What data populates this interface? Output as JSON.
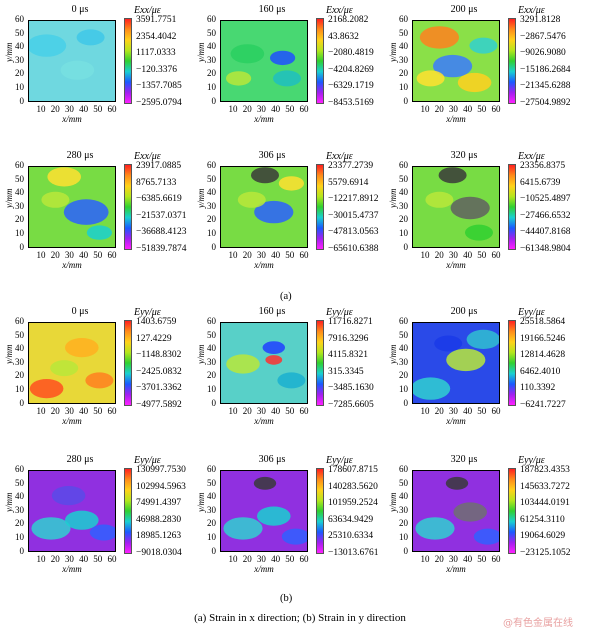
{
  "section_labels": [
    "(a)",
    "(b)"
  ],
  "caption": "(a) Strain in x direction; (b) Strain in y direction",
  "watermark": "@有色金属在线",
  "axes": {
    "y_label": "y/mm",
    "x_label": "x/mm",
    "y_ticks": [
      "60",
      "50",
      "40",
      "30",
      "20",
      "10",
      "0"
    ],
    "x_ticks": [
      "10",
      "20",
      "30",
      "40",
      "50",
      "60"
    ]
  },
  "colors": {
    "bar": [
      "#ff2020",
      "#ff8c1a",
      "#ffd21a",
      "#b5e61d",
      "#30d030",
      "#1ad0d0",
      "#1a5aff",
      "#a020f0",
      "#ff20ff"
    ]
  },
  "panels": [
    {
      "time": "0 μs",
      "quantity": "Exx/με",
      "values": [
        "3591.7751",
        "2354.4042",
        "1117.0333",
        "−120.3376",
        "−1357.7085",
        "−2595.0794"
      ],
      "base": "#6fd8e0"
    },
    {
      "time": "160 μs",
      "quantity": "Exx/με",
      "values": [
        "2168.2082",
        "43.8632",
        "−2080.4819",
        "−4204.8269",
        "−6329.1719",
        "−8453.5169"
      ],
      "base": "#48d872"
    },
    {
      "time": "200 μs",
      "quantity": "Exx/με",
      "values": [
        "3291.8128",
        "−2867.5476",
        "−9026.9080",
        "−15186.2684",
        "−21345.6288",
        "−27504.9892"
      ],
      "base": "#8ae048"
    },
    {
      "time": "280 μs",
      "quantity": "Exx/με",
      "values": [
        "23917.0885",
        "8765.7133",
        "−6385.6619",
        "−21537.0371",
        "−36688.4123",
        "−51839.7874"
      ],
      "base": "#78dc44"
    },
    {
      "time": "306 μs",
      "quantity": "Exx/με",
      "values": [
        "23377.2739",
        "5579.6914",
        "−12217.8912",
        "−30015.4737",
        "−47813.0563",
        "−65610.6388"
      ],
      "base": "#78dc44"
    },
    {
      "time": "320 μs",
      "quantity": "Exx/με",
      "values": [
        "23356.8375",
        "6415.6739",
        "−10525.4897",
        "−27466.6532",
        "−44407.8168",
        "−61348.9804"
      ],
      "base": "#78dc44"
    },
    {
      "time": "0 μs",
      "quantity": "Eyy/με",
      "values": [
        "1403.6759",
        "127.4229",
        "−1148.8302",
        "−2425.0832",
        "−3701.3362",
        "−4977.5892"
      ],
      "base": "#e8d838"
    },
    {
      "time": "160 μs",
      "quantity": "Eyy/με",
      "values": [
        "11716.8271",
        "7916.3296",
        "4115.8321",
        "315.3345",
        "−3485.1630",
        "−7285.6605"
      ],
      "base": "#58d0c8"
    },
    {
      "time": "200 μs",
      "quantity": "Eyy/με",
      "values": [
        "25518.5864",
        "19166.5246",
        "12814.4628",
        "6462.4010",
        "110.3392",
        "−6241.7227"
      ],
      "base": "#2a4ae8"
    },
    {
      "time": "280 μs",
      "quantity": "Eyy/με",
      "values": [
        "130997.7530",
        "102994.5963",
        "74991.4397",
        "46988.2830",
        "18985.1263",
        "−9018.0304"
      ],
      "base": "#9030e0"
    },
    {
      "time": "306 μs",
      "quantity": "Eyy/με",
      "values": [
        "178607.8715",
        "140283.5620",
        "101959.2524",
        "63634.9429",
        "25310.6334",
        "−13013.6761"
      ],
      "base": "#9030e0"
    },
    {
      "time": "320 μs",
      "quantity": "Eyy/με",
      "values": [
        "187823.4353",
        "145633.7272",
        "103444.0191",
        "61254.3110",
        "19064.6029",
        "−23125.1052"
      ],
      "base": "#9030e0"
    }
  ]
}
